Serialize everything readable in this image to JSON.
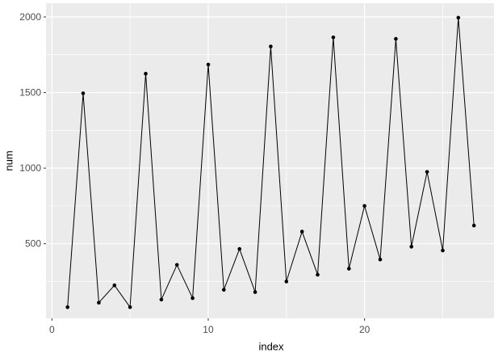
{
  "chart_data": {
    "type": "line",
    "title": "",
    "xlabel": "index",
    "ylabel": "num",
    "x": [
      1,
      2,
      3,
      4,
      5,
      6,
      7,
      8,
      9,
      10,
      11,
      12,
      13,
      14,
      15,
      16,
      17,
      18,
      19,
      20,
      21,
      22,
      23,
      24,
      25,
      26,
      27
    ],
    "y": [
      80,
      1495,
      110,
      225,
      80,
      1625,
      130,
      360,
      140,
      1685,
      195,
      465,
      180,
      1805,
      250,
      580,
      295,
      1865,
      335,
      750,
      395,
      1855,
      480,
      975,
      455,
      1995,
      620
    ],
    "x_ticks": [
      0,
      10,
      20
    ],
    "y_ticks": [
      500,
      1000,
      1500,
      2000
    ],
    "x_minor_ticks": [
      5,
      15,
      25
    ],
    "y_minor_ticks": [
      250,
      750,
      1250,
      1750
    ],
    "xlim": [
      -0.4,
      28.3
    ],
    "ylim": [
      9,
      2090
    ],
    "grid": "on",
    "legend": "none",
    "marker": "point",
    "style": {
      "panel_bg": "#EBEBEB",
      "grid_color": "#FFFFFF",
      "line_color": "#000000",
      "point_color": "#000000",
      "tick_label_color": "#4D4D4D",
      "tick_mark_color": "#333333",
      "axis_title_color": "#000000",
      "outer_bg": "#FFFFFF"
    }
  }
}
